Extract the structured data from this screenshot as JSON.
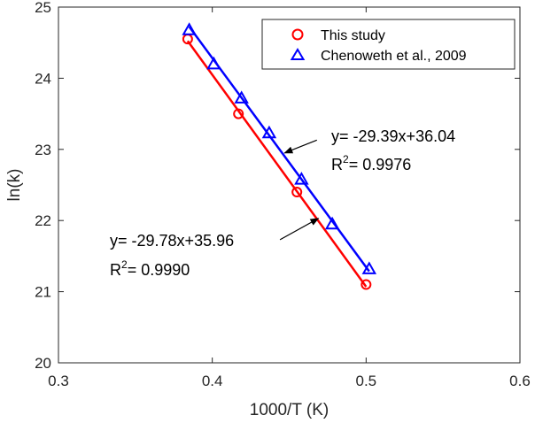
{
  "chart_data": {
    "type": "scatter",
    "title": "",
    "xlabel": "1000/T (K)",
    "ylabel": "ln(k)",
    "xlim": [
      0.3,
      0.6
    ],
    "ylim": [
      20,
      25
    ],
    "xticks": [
      0.3,
      0.4,
      0.5,
      0.6
    ],
    "yticks": [
      20,
      21,
      22,
      23,
      24,
      25
    ],
    "xtick_labels": [
      "0.3",
      "0.4",
      "0.5",
      "0.6"
    ],
    "ytick_labels": [
      "20",
      "21",
      "22",
      "23",
      "24",
      "25"
    ],
    "grid": false,
    "legend_position": "top-right",
    "series": [
      {
        "name": "This study",
        "marker": "circle",
        "color": "#ff0000",
        "x": [
          0.384,
          0.417,
          0.455,
          0.5
        ],
        "y": [
          24.55,
          23.5,
          22.4,
          21.1
        ],
        "fit": {
          "slope": -29.78,
          "intercept": 35.96,
          "x_range": [
            0.384,
            0.5
          ]
        }
      },
      {
        "name": "Chenoweth et al., 2009",
        "marker": "triangle",
        "color": "#0000ff",
        "x": [
          0.385,
          0.401,
          0.419,
          0.437,
          0.458,
          0.478,
          0.502
        ],
        "y": [
          24.68,
          24.2,
          23.72,
          23.23,
          22.58,
          21.95,
          21.32
        ],
        "fit": {
          "slope": -29.39,
          "intercept": 36.04,
          "x_range": [
            0.385,
            0.502
          ]
        }
      }
    ],
    "annotations": [
      {
        "equation": "y= -29.39x+36.04",
        "r2_prefix": "R",
        "r2_sup": "2",
        "r2_value": "= 0.9976",
        "arrow_tip": [
          0.447,
          22.95
        ],
        "arrow_tail": [
          0.468,
          23.13
        ]
      },
      {
        "equation": "y= -29.78x+35.96",
        "r2_prefix": "R",
        "r2_sup": "2",
        "r2_value": "= 0.9990",
        "arrow_tip": [
          0.469,
          22.03
        ],
        "arrow_tail": [
          0.444,
          21.73
        ]
      }
    ]
  }
}
